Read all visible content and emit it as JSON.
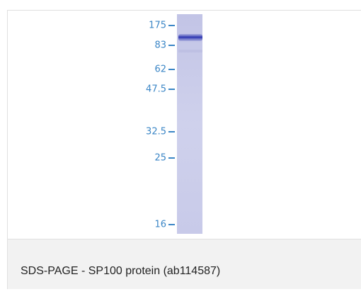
{
  "figure": {
    "markers": [
      "175",
      "83",
      "62",
      "47.5",
      "32.5",
      "25",
      "16"
    ]
  },
  "caption": "SDS-PAGE - SP100 protein (ab114587)"
}
